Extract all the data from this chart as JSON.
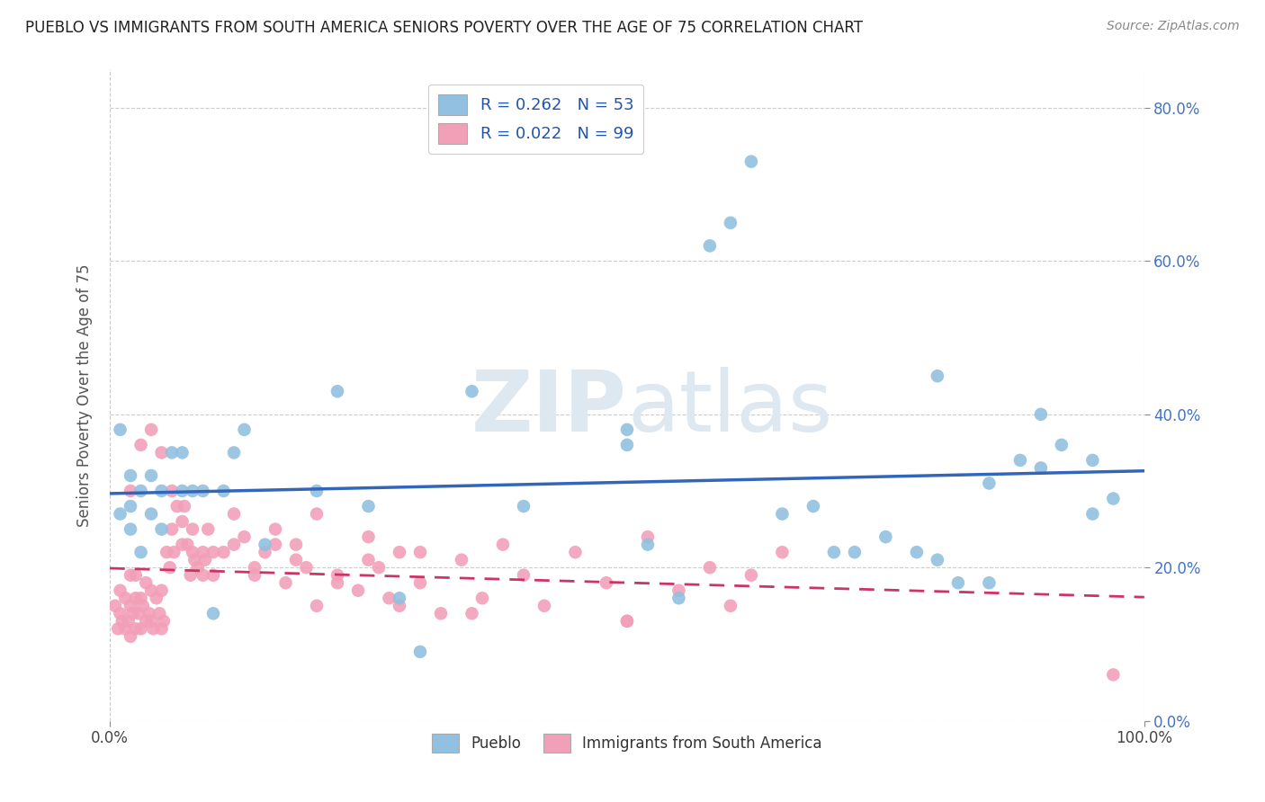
{
  "title": "PUEBLO VS IMMIGRANTS FROM SOUTH AMERICA SENIORS POVERTY OVER THE AGE OF 75 CORRELATION CHART",
  "source": "Source: ZipAtlas.com",
  "ylabel": "Seniors Poverty Over the Age of 75",
  "xlim": [
    0,
    1
  ],
  "ylim": [
    0,
    0.85
  ],
  "yticks": [
    0.0,
    0.2,
    0.4,
    0.6,
    0.8
  ],
  "ytick_labels": [
    "0.0%",
    "20.0%",
    "40.0%",
    "60.0%",
    "80.0%"
  ],
  "xtick_left": "0.0%",
  "xtick_right": "100.0%",
  "legend_line1": "R = 0.262   N = 53",
  "legend_line2": "R = 0.022   N = 99",
  "bottom_legend_blue": "Pueblo",
  "bottom_legend_pink": "Immigrants from South America",
  "blue_color": "#92c0e0",
  "pink_color": "#f2a0b8",
  "trendline_blue_color": "#3366bb",
  "trendline_pink_color": "#cc3366",
  "background_color": "#ffffff",
  "grid_color": "#cccccc",
  "watermark_color": "#dde8f0",
  "blue_x": [
    0.01,
    0.01,
    0.02,
    0.02,
    0.02,
    0.03,
    0.03,
    0.04,
    0.04,
    0.05,
    0.05,
    0.06,
    0.07,
    0.07,
    0.08,
    0.09,
    0.1,
    0.11,
    0.12,
    0.13,
    0.15,
    0.2,
    0.22,
    0.25,
    0.28,
    0.3,
    0.35,
    0.4,
    0.5,
    0.52,
    0.55,
    0.6,
    0.62,
    0.65,
    0.68,
    0.7,
    0.72,
    0.75,
    0.78,
    0.8,
    0.82,
    0.85,
    0.88,
    0.9,
    0.92,
    0.95,
    0.97,
    0.5,
    0.58,
    0.8,
    0.85,
    0.9,
    0.95
  ],
  "blue_y": [
    0.38,
    0.27,
    0.32,
    0.28,
    0.25,
    0.3,
    0.22,
    0.32,
    0.27,
    0.3,
    0.25,
    0.35,
    0.3,
    0.35,
    0.3,
    0.3,
    0.14,
    0.3,
    0.35,
    0.38,
    0.23,
    0.3,
    0.43,
    0.28,
    0.16,
    0.09,
    0.43,
    0.28,
    0.38,
    0.23,
    0.16,
    0.65,
    0.73,
    0.27,
    0.28,
    0.22,
    0.22,
    0.24,
    0.22,
    0.21,
    0.18,
    0.18,
    0.34,
    0.4,
    0.36,
    0.34,
    0.29,
    0.36,
    0.62,
    0.45,
    0.31,
    0.33,
    0.27
  ],
  "pink_x": [
    0.005,
    0.008,
    0.01,
    0.01,
    0.012,
    0.015,
    0.015,
    0.018,
    0.02,
    0.02,
    0.02,
    0.022,
    0.025,
    0.025,
    0.025,
    0.028,
    0.03,
    0.03,
    0.032,
    0.035,
    0.035,
    0.038,
    0.04,
    0.04,
    0.042,
    0.045,
    0.048,
    0.05,
    0.05,
    0.052,
    0.055,
    0.058,
    0.06,
    0.062,
    0.065,
    0.07,
    0.072,
    0.075,
    0.078,
    0.08,
    0.082,
    0.085,
    0.09,
    0.092,
    0.095,
    0.1,
    0.11,
    0.12,
    0.13,
    0.14,
    0.15,
    0.16,
    0.17,
    0.18,
    0.19,
    0.2,
    0.22,
    0.24,
    0.25,
    0.26,
    0.27,
    0.28,
    0.3,
    0.32,
    0.34,
    0.36,
    0.38,
    0.4,
    0.42,
    0.45,
    0.48,
    0.5,
    0.52,
    0.55,
    0.58,
    0.6,
    0.62,
    0.65,
    0.02,
    0.03,
    0.04,
    0.05,
    0.06,
    0.07,
    0.08,
    0.09,
    0.1,
    0.12,
    0.14,
    0.16,
    0.18,
    0.2,
    0.22,
    0.25,
    0.28,
    0.3,
    0.35,
    0.5,
    0.97
  ],
  "pink_y": [
    0.15,
    0.12,
    0.14,
    0.17,
    0.13,
    0.12,
    0.16,
    0.13,
    0.11,
    0.15,
    0.19,
    0.14,
    0.12,
    0.16,
    0.19,
    0.14,
    0.12,
    0.16,
    0.15,
    0.13,
    0.18,
    0.14,
    0.13,
    0.17,
    0.12,
    0.16,
    0.14,
    0.12,
    0.17,
    0.13,
    0.22,
    0.2,
    0.25,
    0.22,
    0.28,
    0.23,
    0.28,
    0.23,
    0.19,
    0.25,
    0.21,
    0.2,
    0.22,
    0.21,
    0.25,
    0.19,
    0.22,
    0.27,
    0.24,
    0.19,
    0.22,
    0.25,
    0.18,
    0.23,
    0.2,
    0.15,
    0.19,
    0.17,
    0.24,
    0.2,
    0.16,
    0.22,
    0.18,
    0.14,
    0.21,
    0.16,
    0.23,
    0.19,
    0.15,
    0.22,
    0.18,
    0.13,
    0.24,
    0.17,
    0.2,
    0.15,
    0.19,
    0.22,
    0.3,
    0.36,
    0.38,
    0.35,
    0.3,
    0.26,
    0.22,
    0.19,
    0.22,
    0.23,
    0.2,
    0.23,
    0.21,
    0.27,
    0.18,
    0.21,
    0.15,
    0.22,
    0.14,
    0.13,
    0.06
  ]
}
